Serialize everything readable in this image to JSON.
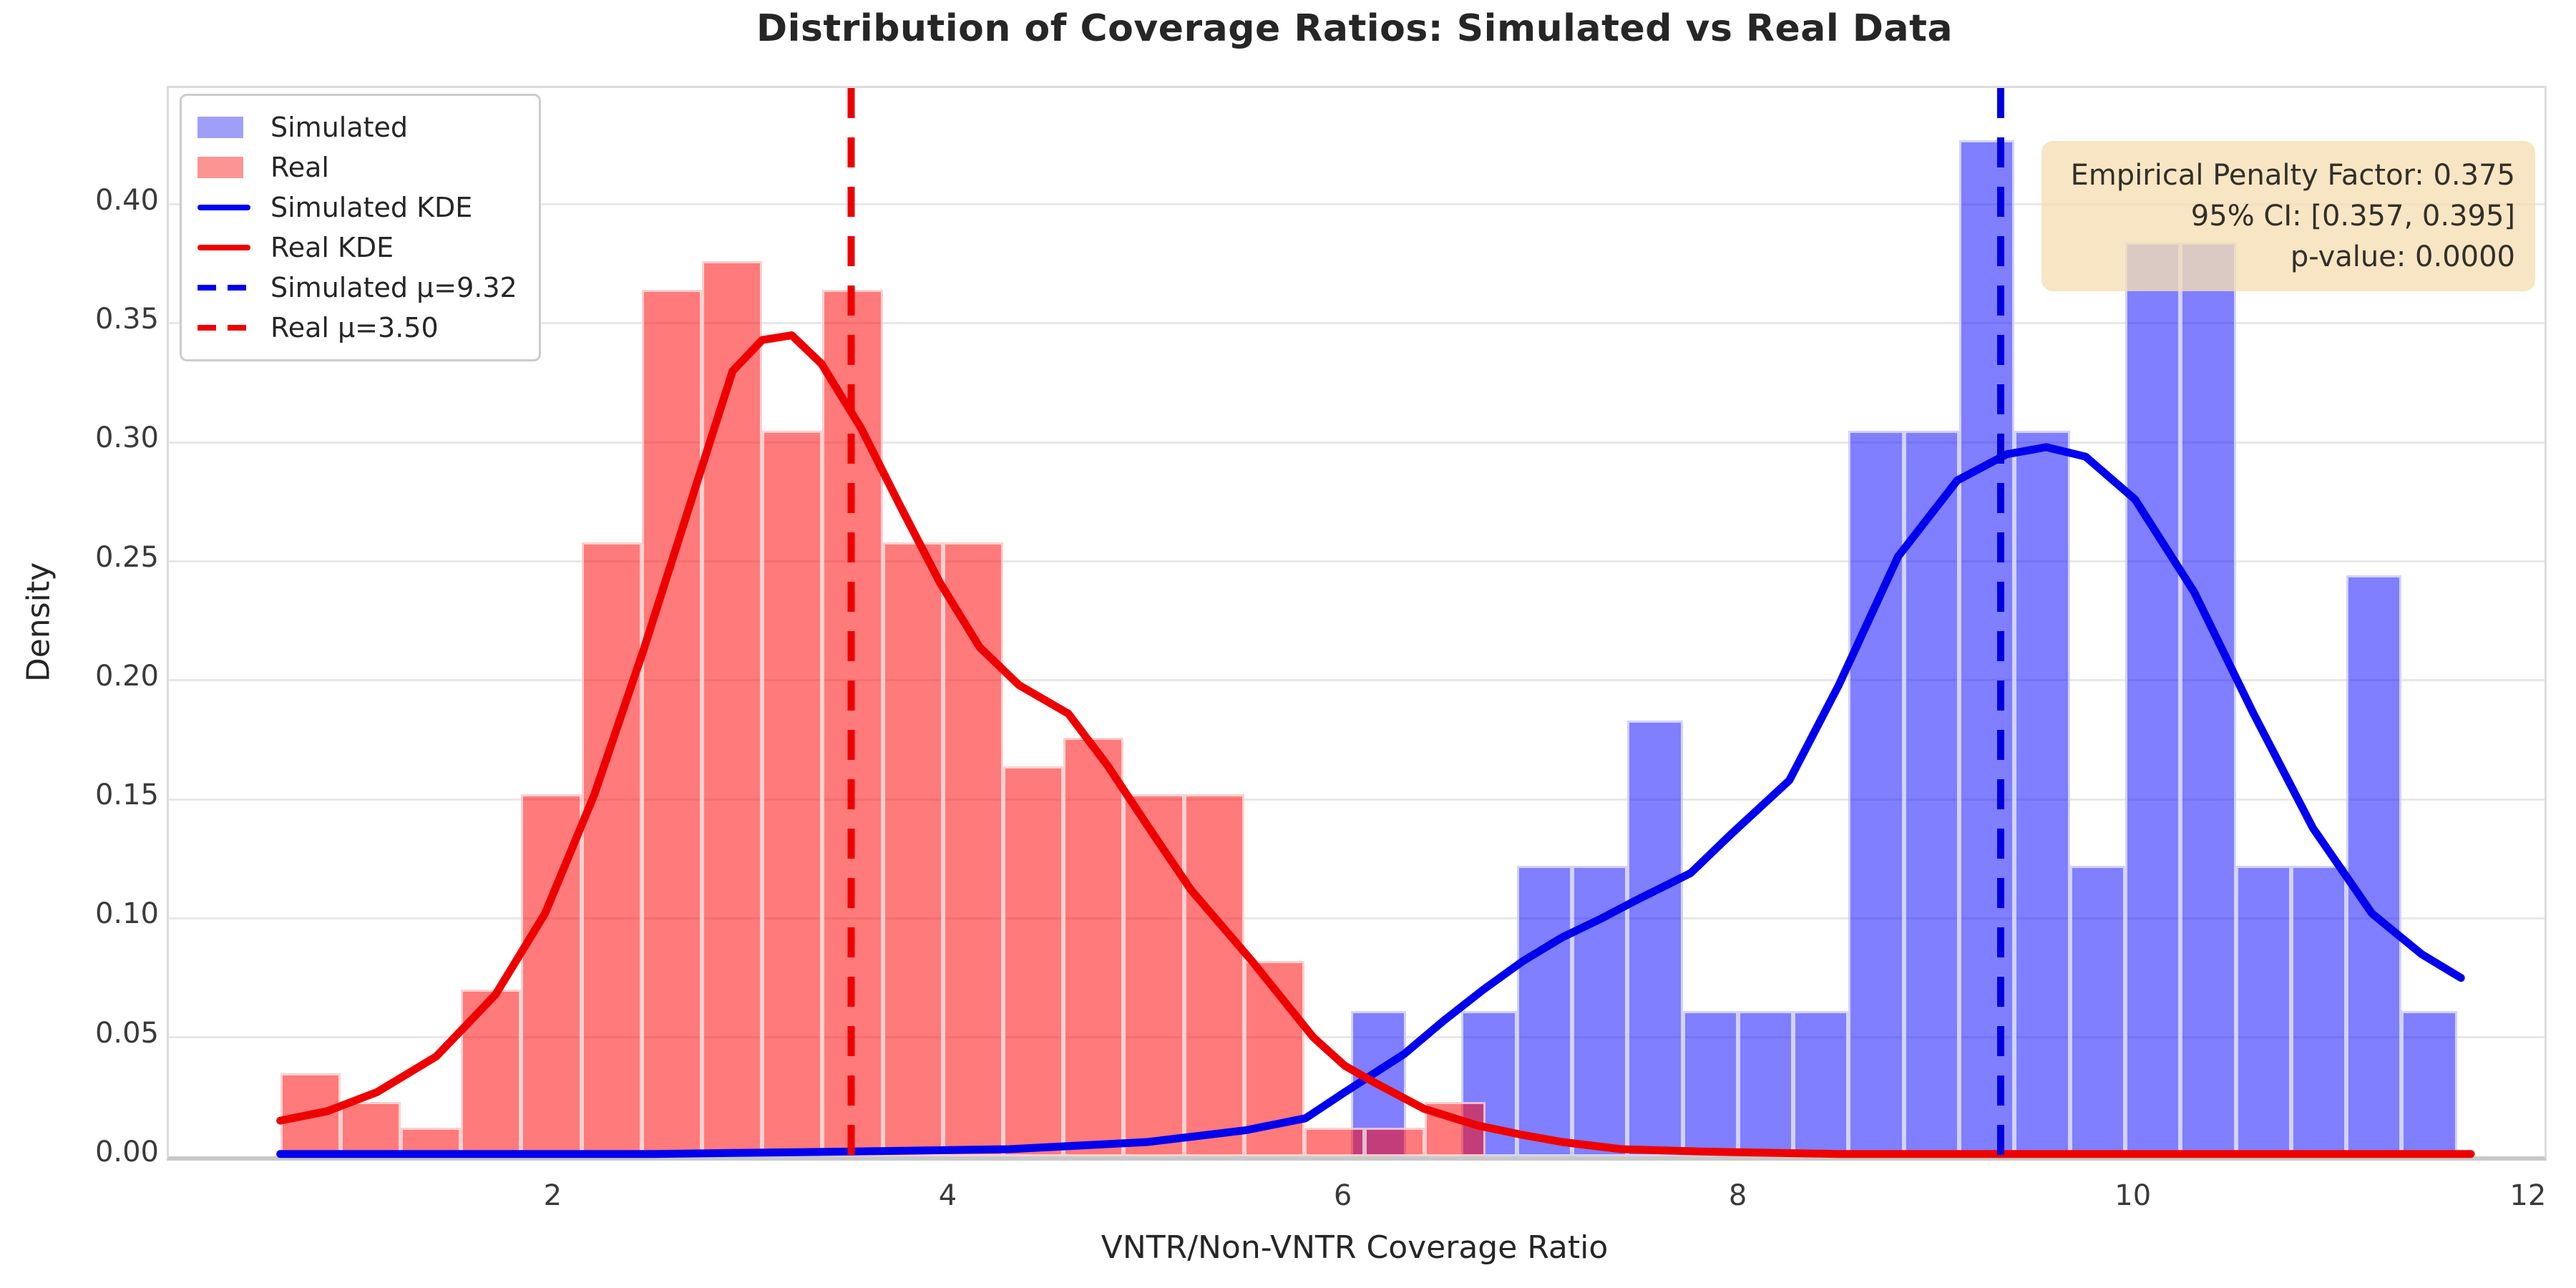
{
  "title": "Distribution of Coverage Ratios: Simulated vs Real Data",
  "axes": {
    "xlabel": "VNTR/Non-VNTR Coverage Ratio",
    "ylabel": "Density",
    "x_tick_labels": [
      "2",
      "4",
      "6",
      "8",
      "10",
      "12"
    ],
    "y_tick_labels": [
      "0.00",
      "0.05",
      "0.10",
      "0.15",
      "0.20",
      "0.25",
      "0.30",
      "0.35",
      "0.40"
    ]
  },
  "legend": {
    "items": [
      {
        "label": "Simulated",
        "swatch": "patch",
        "color": "rgba(70,70,245,0.52)"
      },
      {
        "label": "Real",
        "swatch": "patch",
        "color": "rgba(250,60,60,0.55)"
      },
      {
        "label": "Simulated KDE",
        "swatch": "line",
        "color": "#0000ee"
      },
      {
        "label": "Real KDE",
        "swatch": "line",
        "color": "#ee0000"
      },
      {
        "label": "Simulated μ=9.32",
        "swatch": "dashed-line",
        "color": "#0000ee"
      },
      {
        "label": "Real μ=3.50",
        "swatch": "dashed-line",
        "color": "#ee0000"
      }
    ]
  },
  "annotation": {
    "lines": [
      "Empirical Penalty Factor: 0.375",
      "95% CI: [0.357, 0.395]",
      "p-value: 0.0000"
    ],
    "penalty_factor": "0.375",
    "ci_95": "[0.357, 0.395]",
    "p_value": "0.0000",
    "bg_color": "#f5deb3"
  },
  "chart_data": {
    "type": "bar",
    "subtype": "overlaid-histograms-with-kde",
    "title": "Distribution of Coverage Ratios: Simulated vs Real Data",
    "xlabel": "VNTR/Non-VNTR Coverage Ratio",
    "ylabel": "Density",
    "xlim": [
      0.046,
      12.073
    ],
    "ylim": [
      0,
      0.4489
    ],
    "x_ticks": [
      2,
      4,
      6,
      8,
      10,
      12
    ],
    "y_ticks": [
      0.0,
      0.05,
      0.1,
      0.15,
      0.2,
      0.25,
      0.3,
      0.35,
      0.4
    ],
    "grid": true,
    "legend_position": "upper-left",
    "series": [
      {
        "name": "Simulated",
        "role": "histogram",
        "bin_start": 6.03,
        "bin_width": 0.28,
        "color": "rgba(0,0,255,0.5)",
        "heights": [
          0.061,
          0,
          0.061,
          0.122,
          0.122,
          0.183,
          0.061,
          0.061,
          0.061,
          0.305,
          0.305,
          0.427,
          0.305,
          0.122,
          0.384,
          0.384,
          0.122,
          0.122,
          0.244,
          0.061
        ]
      },
      {
        "name": "Real",
        "role": "histogram",
        "bin_start": 0.61,
        "bin_width": 0.305,
        "color": "rgba(255,0,0,0.52)",
        "heights": [
          0.035,
          0.023,
          0.012,
          0.07,
          0.152,
          0.258,
          0.364,
          0.376,
          0.305,
          0.364,
          0.258,
          0.258,
          0.164,
          0.176,
          0.152,
          0.152,
          0.082,
          0.012,
          0.012,
          0.023
        ]
      }
    ],
    "kde": [
      {
        "name": "Simulated KDE",
        "color": "#0000ee",
        "width": 11,
        "points": [
          [
            0.61,
            0.001
          ],
          [
            2.5,
            0.001
          ],
          [
            3.5,
            0.002
          ],
          [
            4.3,
            0.003
          ],
          [
            5.0,
            0.006
          ],
          [
            5.5,
            0.011
          ],
          [
            5.8,
            0.016
          ],
          [
            6.0,
            0.027
          ],
          [
            6.3,
            0.043
          ],
          [
            6.5,
            0.057
          ],
          [
            6.7,
            0.07
          ],
          [
            6.9,
            0.082
          ],
          [
            7.1,
            0.092
          ],
          [
            7.3,
            0.1
          ],
          [
            7.46,
            0.107
          ],
          [
            7.75,
            0.119
          ],
          [
            7.95,
            0.135
          ],
          [
            8.25,
            0.158
          ],
          [
            8.5,
            0.198
          ],
          [
            8.8,
            0.252
          ],
          [
            9.1,
            0.284
          ],
          [
            9.35,
            0.295
          ],
          [
            9.55,
            0.298
          ],
          [
            9.75,
            0.294
          ],
          [
            10.0,
            0.276
          ],
          [
            10.3,
            0.237
          ],
          [
            10.6,
            0.186
          ],
          [
            10.9,
            0.138
          ],
          [
            11.2,
            0.102
          ],
          [
            11.45,
            0.085
          ],
          [
            11.65,
            0.075
          ]
        ]
      },
      {
        "name": "Real KDE",
        "color": "#ee0000",
        "width": 11,
        "points": [
          [
            0.61,
            0.015
          ],
          [
            0.85,
            0.019
          ],
          [
            1.1,
            0.027
          ],
          [
            1.4,
            0.042
          ],
          [
            1.7,
            0.068
          ],
          [
            1.95,
            0.102
          ],
          [
            2.2,
            0.152
          ],
          [
            2.45,
            0.213
          ],
          [
            2.7,
            0.278
          ],
          [
            2.9,
            0.33
          ],
          [
            3.05,
            0.343
          ],
          [
            3.2,
            0.345
          ],
          [
            3.35,
            0.333
          ],
          [
            3.55,
            0.306
          ],
          [
            3.75,
            0.273
          ],
          [
            3.95,
            0.241
          ],
          [
            4.15,
            0.214
          ],
          [
            4.35,
            0.198
          ],
          [
            4.6,
            0.186
          ],
          [
            4.8,
            0.164
          ],
          [
            5.0,
            0.139
          ],
          [
            5.22,
            0.112
          ],
          [
            5.53,
            0.082
          ],
          [
            5.84,
            0.05
          ],
          [
            6.0,
            0.038
          ],
          [
            6.15,
            0.031
          ],
          [
            6.4,
            0.02
          ],
          [
            6.67,
            0.013
          ],
          [
            6.9,
            0.009
          ],
          [
            7.1,
            0.006
          ],
          [
            7.4,
            0.003
          ],
          [
            7.8,
            0.002
          ],
          [
            8.5,
            0.001
          ],
          [
            11.7,
            0.001
          ]
        ]
      }
    ],
    "mean_lines": [
      {
        "label": "Simulated μ=9.32",
        "x": 9.32,
        "color": "#0000dd"
      },
      {
        "label": "Real μ=3.50",
        "x": 3.5,
        "color": "#ee0000"
      }
    ]
  }
}
